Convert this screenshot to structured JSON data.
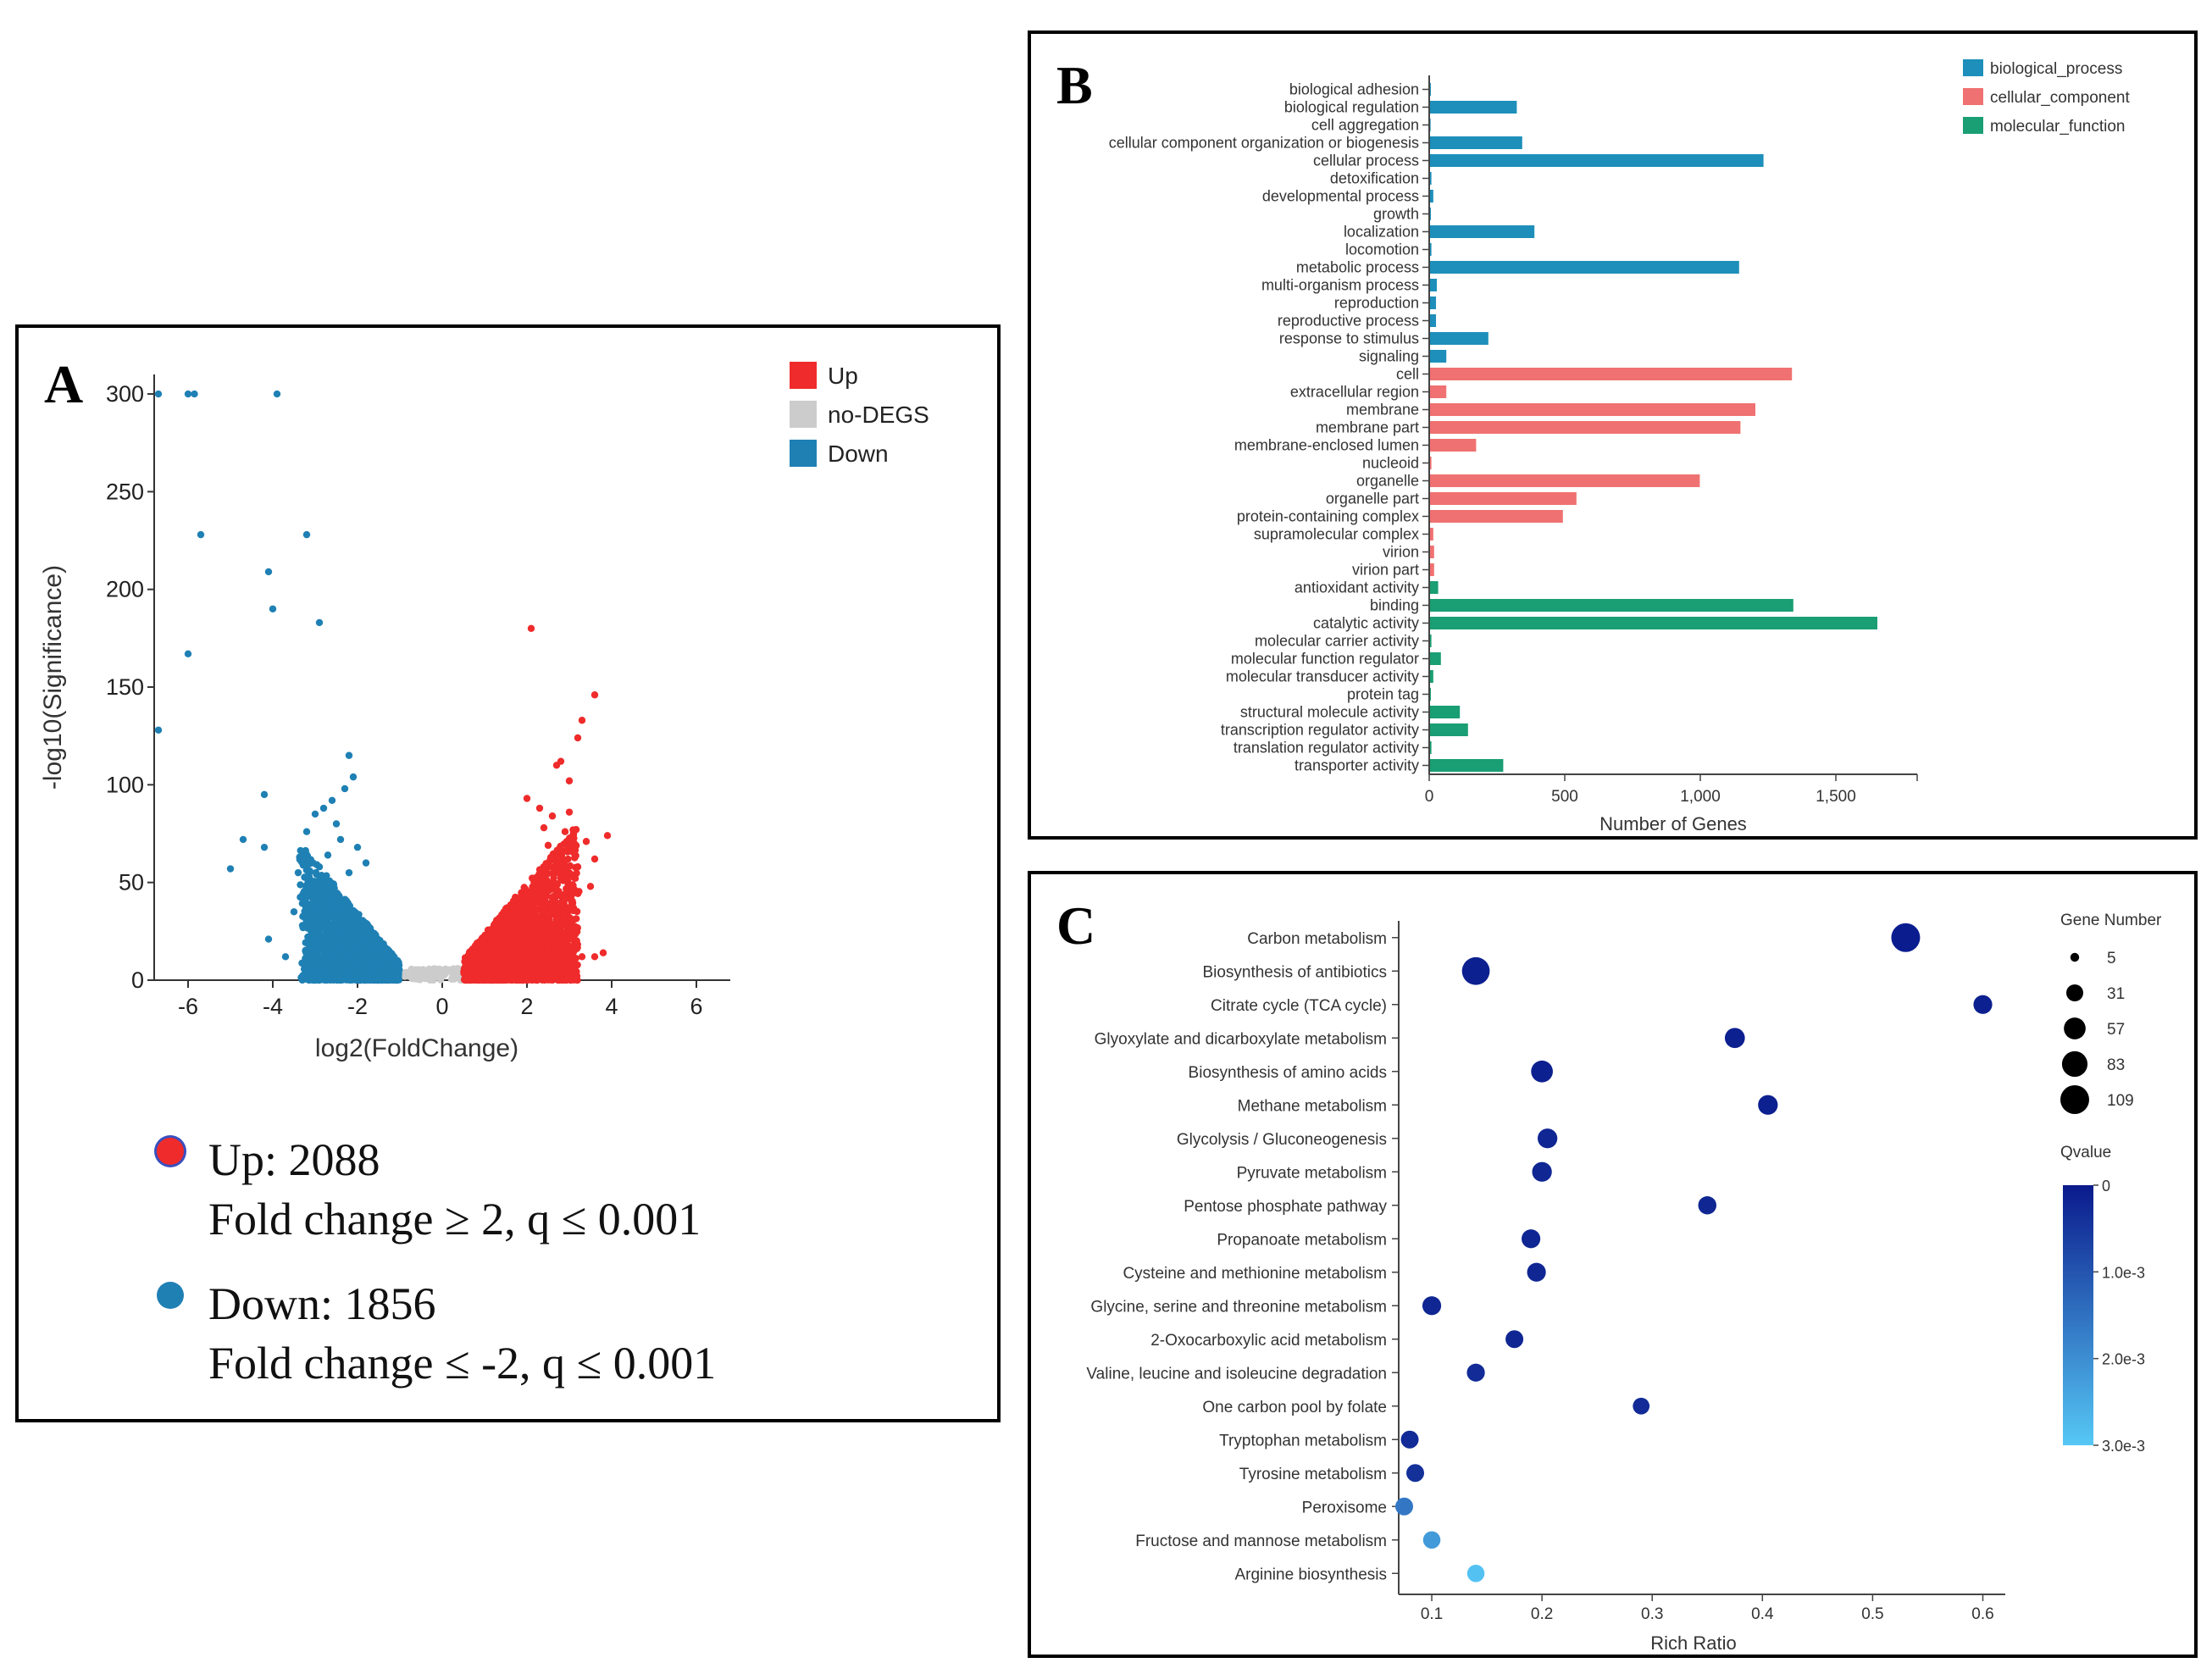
{
  "panelA": {
    "letter": "A",
    "chart_data": {
      "type": "scatter",
      "title": "",
      "xlabel": "log2(FoldChange)",
      "ylabel": "-log10(Significance)",
      "xlim": [
        -6.8,
        6.8
      ],
      "ylim": [
        0,
        310
      ],
      "xticks": [
        -6,
        -4,
        -2,
        0,
        2,
        4,
        6
      ],
      "yticks": [
        0,
        50,
        100,
        150,
        200,
        250,
        300
      ],
      "legend": [
        {
          "label": "Up",
          "color": "#ef2b2b"
        },
        {
          "label": "no-DEGS",
          "color": "#cccccc"
        },
        {
          "label": "Down",
          "color": "#1f80b4"
        }
      ],
      "down_outliers": [
        [
          -6.7,
          300
        ],
        [
          -6.0,
          300
        ],
        [
          -5.85,
          300
        ],
        [
          -3.9,
          300
        ],
        [
          -5.7,
          228
        ],
        [
          -3.2,
          228
        ],
        [
          -4.1,
          209
        ],
        [
          -4.0,
          190
        ],
        [
          -2.9,
          183
        ],
        [
          -6.0,
          167
        ],
        [
          -6.7,
          128
        ],
        [
          -4.2,
          95
        ],
        [
          -5.0,
          57
        ],
        [
          -4.7,
          72
        ],
        [
          -4.2,
          68
        ],
        [
          -4.1,
          21
        ],
        [
          -3.7,
          12
        ],
        [
          -2.2,
          115
        ],
        [
          -2.1,
          104
        ],
        [
          -2.3,
          98
        ],
        [
          -2.6,
          92
        ],
        [
          -2.8,
          88
        ],
        [
          -3.0,
          85
        ],
        [
          -2.5,
          80
        ],
        [
          -3.2,
          76
        ],
        [
          -2.4,
          72
        ],
        [
          -2.0,
          68
        ],
        [
          -2.7,
          64
        ],
        [
          -1.8,
          60
        ],
        [
          -2.9,
          58
        ],
        [
          -3.4,
          55
        ],
        [
          -2.2,
          55
        ],
        [
          -3.1,
          45
        ],
        [
          -2.6,
          44
        ],
        [
          -3.5,
          35
        ],
        [
          -3.3,
          28
        ],
        [
          -2.8,
          22
        ]
      ],
      "up_outliers": [
        [
          2.1,
          180
        ],
        [
          3.6,
          146
        ],
        [
          3.3,
          133
        ],
        [
          3.2,
          124
        ],
        [
          2.8,
          112
        ],
        [
          2.7,
          110
        ],
        [
          3.0,
          102
        ],
        [
          2.0,
          93
        ],
        [
          2.3,
          88
        ],
        [
          3.0,
          86
        ],
        [
          2.6,
          84
        ],
        [
          2.4,
          78
        ],
        [
          2.9,
          76
        ],
        [
          3.9,
          74
        ],
        [
          3.4,
          71
        ],
        [
          2.5,
          69
        ],
        [
          3.1,
          66
        ],
        [
          2.7,
          63
        ],
        [
          3.6,
          62
        ],
        [
          3.2,
          58
        ],
        [
          3.0,
          55
        ],
        [
          2.8,
          52
        ],
        [
          3.5,
          48
        ],
        [
          3.8,
          14
        ],
        [
          3.3,
          12
        ],
        [
          3.6,
          12
        ],
        [
          3.0,
          10
        ]
      ],
      "cloud_counts": {
        "down": 2000,
        "up": 2200,
        "no_degs": 140
      }
    },
    "summary": {
      "up_label": "Up: 2088",
      "up_criteria": "Fold change ≥ 2, q ≤ 0.001",
      "down_label": "Down: 1856",
      "down_criteria": "Fold change ≤ -2, q ≤ 0.001",
      "up_color": "#ef2b2b",
      "down_color": "#1f80b4"
    }
  },
  "panelB": {
    "letter": "B",
    "chart_data": {
      "type": "bar",
      "orientation": "horizontal",
      "xlabel": "Number of Genes",
      "xlim": [
        0,
        1800
      ],
      "xticks": [
        0,
        500,
        1000,
        1500
      ],
      "xtick_labels": [
        "0",
        "500",
        "1,000",
        "1,500"
      ],
      "legend": [
        {
          "label": "biological_process",
          "color": "#1d8fba"
        },
        {
          "label": "cellular_component",
          "color": "#f07171"
        },
        {
          "label": "molecular_function",
          "color": "#1a9e74"
        }
      ],
      "categories": [
        {
          "label": "biological adhesion",
          "value": 3,
          "group": 0
        },
        {
          "label": "biological regulation",
          "value": 320,
          "group": 0
        },
        {
          "label": "cell aggregation",
          "value": 2,
          "group": 0
        },
        {
          "label": "cellular component organization or biogenesis",
          "value": 340,
          "group": 0
        },
        {
          "label": "cellular process",
          "value": 1230,
          "group": 0
        },
        {
          "label": "detoxification",
          "value": 5,
          "group": 0
        },
        {
          "label": "developmental process",
          "value": 12,
          "group": 0
        },
        {
          "label": "growth",
          "value": 3,
          "group": 0
        },
        {
          "label": "localization",
          "value": 385,
          "group": 0
        },
        {
          "label": "locomotion",
          "value": 5,
          "group": 0
        },
        {
          "label": "metabolic process",
          "value": 1140,
          "group": 0
        },
        {
          "label": "multi-organism process",
          "value": 25,
          "group": 0
        },
        {
          "label": "reproduction",
          "value": 22,
          "group": 0
        },
        {
          "label": "reproductive process",
          "value": 22,
          "group": 0
        },
        {
          "label": "response to stimulus",
          "value": 215,
          "group": 0
        },
        {
          "label": "signaling",
          "value": 60,
          "group": 0
        },
        {
          "label": "cell",
          "value": 1335,
          "group": 1
        },
        {
          "label": "extracellular region",
          "value": 60,
          "group": 1
        },
        {
          "label": "membrane",
          "value": 1200,
          "group": 1
        },
        {
          "label": "membrane part",
          "value": 1145,
          "group": 1
        },
        {
          "label": "membrane-enclosed lumen",
          "value": 170,
          "group": 1
        },
        {
          "label": "nucleoid",
          "value": 5,
          "group": 1
        },
        {
          "label": "organelle",
          "value": 995,
          "group": 1
        },
        {
          "label": "organelle part",
          "value": 540,
          "group": 1
        },
        {
          "label": "protein-containing complex",
          "value": 490,
          "group": 1
        },
        {
          "label": "supramolecular complex",
          "value": 12,
          "group": 1
        },
        {
          "label": "virion",
          "value": 15,
          "group": 1
        },
        {
          "label": "virion part",
          "value": 15,
          "group": 1
        },
        {
          "label": "antioxidant activity",
          "value": 30,
          "group": 2
        },
        {
          "label": "binding",
          "value": 1340,
          "group": 2
        },
        {
          "label": "catalytic activity",
          "value": 1650,
          "group": 2
        },
        {
          "label": "molecular carrier activity",
          "value": 5,
          "group": 2
        },
        {
          "label": "molecular function regulator",
          "value": 40,
          "group": 2
        },
        {
          "label": "molecular transducer activity",
          "value": 12,
          "group": 2
        },
        {
          "label": "protein tag",
          "value": 3,
          "group": 2
        },
        {
          "label": "structural molecule activity",
          "value": 110,
          "group": 2
        },
        {
          "label": "transcription regulator activity",
          "value": 140,
          "group": 2
        },
        {
          "label": "translation regulator activity",
          "value": 5,
          "group": 2
        },
        {
          "label": "transporter activity",
          "value": 270,
          "group": 2
        }
      ]
    }
  },
  "panelC": {
    "letter": "C",
    "chart_data": {
      "type": "scatter",
      "xlabel": "Rich Ratio",
      "xlim": [
        0.07,
        0.605
      ],
      "xticks": [
        0.1,
        0.2,
        0.3,
        0.4,
        0.5,
        0.6
      ],
      "size_legend_title": "Gene Number",
      "size_legend_values": [
        5,
        31,
        57,
        83,
        109
      ],
      "color_legend_title": "Qvalue",
      "color_legend_ticks": [
        "0",
        "1.0e-3",
        "2.0e-3",
        "3.0e-3"
      ],
      "qvalue_range": [
        0,
        0.003
      ],
      "color_low": "#0a1a8c",
      "color_high": "#56c8f5",
      "points": [
        {
          "label": "Carbon metabolism",
          "rich": 0.53,
          "genes": 109,
          "q": 5e-05
        },
        {
          "label": "Biosynthesis of antibiotics",
          "rich": 0.14,
          "genes": 100,
          "q": 0.0001
        },
        {
          "label": "Citrate cycle (TCA cycle)",
          "rich": 0.6,
          "genes": 40,
          "q": 0.0001
        },
        {
          "label": "Glyoxylate and dicarboxylate metabolism",
          "rich": 0.375,
          "genes": 47,
          "q": 0.0001
        },
        {
          "label": "Biosynthesis of amino acids",
          "rich": 0.2,
          "genes": 57,
          "q": 0.0001
        },
        {
          "label": "Methane metabolism",
          "rich": 0.405,
          "genes": 45,
          "q": 0.0001
        },
        {
          "label": "Glycolysis / Gluconeogenesis",
          "rich": 0.205,
          "genes": 45,
          "q": 0.0002
        },
        {
          "label": "Pyruvate metabolism",
          "rich": 0.2,
          "genes": 45,
          "q": 0.0002
        },
        {
          "label": "Pentose phosphate pathway",
          "rich": 0.35,
          "genes": 37,
          "q": 0.0002
        },
        {
          "label": "Propanoate metabolism",
          "rich": 0.19,
          "genes": 40,
          "q": 0.0002
        },
        {
          "label": "Cysteine and methionine metabolism",
          "rich": 0.195,
          "genes": 40,
          "q": 0.0002
        },
        {
          "label": "Glycine, serine and threonine metabolism",
          "rich": 0.1,
          "genes": 40,
          "q": 0.0002
        },
        {
          "label": "2-Oxocarboxylic acid metabolism",
          "rich": 0.175,
          "genes": 35,
          "q": 0.0002
        },
        {
          "label": "Valine, leucine and isoleucine degradation",
          "rich": 0.14,
          "genes": 36,
          "q": 0.0003
        },
        {
          "label": "One carbon pool by folate",
          "rich": 0.29,
          "genes": 30,
          "q": 0.0003
        },
        {
          "label": "Tryptophan metabolism",
          "rich": 0.08,
          "genes": 35,
          "q": 0.0003
        },
        {
          "label": "Tyrosine metabolism",
          "rich": 0.085,
          "genes": 35,
          "q": 0.0004
        },
        {
          "label": "Peroxisome",
          "rich": 0.075,
          "genes": 35,
          "q": 0.0016
        },
        {
          "label": "Fructose and mannose metabolism",
          "rich": 0.1,
          "genes": 33,
          "q": 0.0022
        },
        {
          "label": "Arginine biosynthesis",
          "rich": 0.14,
          "genes": 33,
          "q": 0.0029
        }
      ]
    }
  }
}
